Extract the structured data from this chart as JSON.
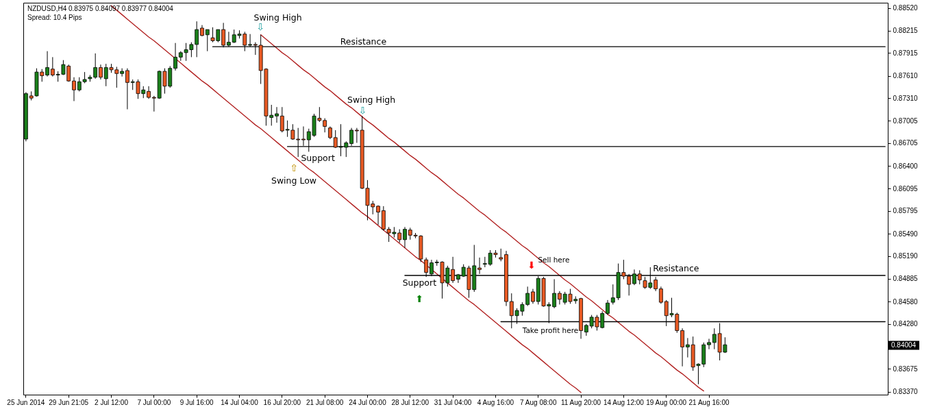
{
  "chart_data": {
    "type": "candlestick",
    "title": "NZDUSD,H4 0.83975 0.84097 0.83977 0.84004",
    "subtitle": "Spread: 10.4 Pips",
    "categories": [
      "25 Jun 2014",
      null,
      null,
      null,
      null,
      null,
      null,
      null,
      "29 Jun 21:05",
      null,
      null,
      null,
      null,
      null,
      null,
      null,
      "2 Jul 12:00",
      null,
      null,
      null,
      null,
      null,
      null,
      null,
      "7 Jul 00:00",
      null,
      null,
      null,
      null,
      null,
      null,
      null,
      "9 Jul 16:00",
      null,
      null,
      null,
      null,
      null,
      null,
      null,
      "14 Jul 04:00",
      null,
      null,
      null,
      null,
      null,
      null,
      null,
      "16 Jul 20:00",
      null,
      null,
      null,
      null,
      null,
      null,
      null,
      "21 Jul 08:00",
      null,
      null,
      null,
      null,
      null,
      null,
      null,
      "24 Jul 00:00",
      null,
      null,
      null,
      null,
      null,
      null,
      null,
      "28 Jul 12:00",
      null,
      null,
      null,
      null,
      null,
      null,
      null,
      "31 Jul 04:00",
      null,
      null,
      null,
      null,
      null,
      null,
      null,
      "4 Aug 16:00",
      null,
      null,
      null,
      null,
      null,
      null,
      null,
      "7 Aug 08:00",
      null,
      null,
      null,
      null,
      null,
      null,
      null,
      "11 Aug 20:00",
      null,
      null,
      null,
      null,
      null,
      null,
      null,
      "14 Aug 12:00",
      null,
      null,
      null,
      null,
      null,
      null,
      null,
      "19 Aug 00:00",
      null,
      null,
      null,
      null,
      null,
      null,
      null,
      "21 Aug 16:00",
      null,
      null,
      null,
      null,
      null,
      null,
      null,
      null,
      null,
      null,
      null,
      null,
      null,
      null,
      null,
      null,
      null,
      null,
      null,
      null,
      null,
      null,
      null,
      null,
      null,
      null,
      null,
      null,
      null,
      null,
      null,
      null,
      null
    ],
    "ohlc": [
      [
        0.8676,
        0.8739,
        0.8673,
        0.8737
      ],
      [
        0.8734,
        0.874,
        0.8728,
        0.8731
      ],
      [
        0.8734,
        0.8771,
        0.8733,
        0.8766
      ],
      [
        0.8766,
        0.877,
        0.8753,
        0.8761
      ],
      [
        0.8762,
        0.8794,
        0.876,
        0.8772
      ],
      [
        0.877,
        0.8786,
        0.876,
        0.8762
      ],
      [
        0.8762,
        0.8767,
        0.8753,
        0.8763
      ],
      [
        0.8763,
        0.8782,
        0.8762,
        0.8776
      ],
      [
        0.8774,
        0.8776,
        0.8753,
        0.8754
      ],
      [
        0.8754,
        0.8759,
        0.8727,
        0.8742
      ],
      [
        0.8742,
        0.8759,
        0.874,
        0.8753
      ],
      [
        0.8753,
        0.8766,
        0.8751,
        0.8756
      ],
      [
        0.8757,
        0.8762,
        0.8753,
        0.8759
      ],
      [
        0.8759,
        0.8791,
        0.8757,
        0.8772
      ],
      [
        0.8772,
        0.8776,
        0.8756,
        0.8759
      ],
      [
        0.8757,
        0.8777,
        0.8747,
        0.8772
      ],
      [
        0.8772,
        0.8777,
        0.8765,
        0.8769
      ],
      [
        0.8769,
        0.8773,
        0.8745,
        0.8764
      ],
      [
        0.8764,
        0.8771,
        0.876,
        0.8767
      ],
      [
        0.8768,
        0.8771,
        0.8716,
        0.8752
      ],
      [
        0.8752,
        0.8756,
        0.8742,
        0.8753
      ],
      [
        0.8753,
        0.8756,
        0.873,
        0.8737
      ],
      [
        0.8737,
        0.8747,
        0.8731,
        0.8742
      ],
      [
        0.874,
        0.8747,
        0.873,
        0.8732
      ],
      [
        0.8732,
        0.8734,
        0.8713,
        0.8731
      ],
      [
        0.8731,
        0.8768,
        0.873,
        0.8767
      ],
      [
        0.8767,
        0.8771,
        0.8737,
        0.8747
      ],
      [
        0.8747,
        0.8774,
        0.8745,
        0.8771
      ],
      [
        0.8771,
        0.8805,
        0.8768,
        0.8786
      ],
      [
        0.8786,
        0.8794,
        0.8781,
        0.8792
      ],
      [
        0.8792,
        0.8805,
        0.8781,
        0.8796
      ],
      [
        0.8796,
        0.8806,
        0.8786,
        0.8803
      ],
      [
        0.8803,
        0.8834,
        0.8786,
        0.8823
      ],
      [
        0.8825,
        0.8829,
        0.8814,
        0.8815
      ],
      [
        0.8816,
        0.8823,
        0.8794,
        0.8823
      ],
      [
        0.8812,
        0.8826,
        0.8806,
        0.8808
      ],
      [
        0.8808,
        0.8823,
        0.8806,
        0.8823
      ],
      [
        0.8823,
        0.8832,
        0.8799,
        0.8802
      ],
      [
        0.8802,
        0.882,
        0.88,
        0.8806
      ],
      [
        0.8806,
        0.8823,
        0.8805,
        0.8816
      ],
      [
        0.8815,
        0.8822,
        0.8811,
        0.8817
      ],
      [
        0.8817,
        0.882,
        0.8794,
        0.8802
      ],
      [
        0.8802,
        0.8817,
        0.88,
        0.8803
      ],
      [
        0.8803,
        0.8806,
        0.8789,
        0.8802
      ],
      [
        0.8802,
        0.8816,
        0.875,
        0.8768
      ],
      [
        0.877,
        0.8771,
        0.8694,
        0.8707
      ],
      [
        0.8705,
        0.8722,
        0.8694,
        0.8708
      ],
      [
        0.8707,
        0.8719,
        0.8698,
        0.871
      ],
      [
        0.8707,
        0.8719,
        0.8685,
        0.8687
      ],
      [
        0.8688,
        0.8701,
        0.8679,
        0.8689
      ],
      [
        0.8688,
        0.8696,
        0.8675,
        0.8676
      ],
      [
        0.8676,
        0.8691,
        0.8652,
        0.8675
      ],
      [
        0.8676,
        0.8693,
        0.8667,
        0.8675
      ],
      [
        0.8675,
        0.869,
        0.8659,
        0.8686
      ],
      [
        0.8681,
        0.871,
        0.8679,
        0.8707
      ],
      [
        0.8704,
        0.8719,
        0.8699,
        0.8701
      ],
      [
        0.8701,
        0.8704,
        0.8685,
        0.8693
      ],
      [
        0.8691,
        0.8693,
        0.8676,
        0.8678
      ],
      [
        0.8678,
        0.8688,
        0.8664,
        0.8665
      ],
      [
        0.8665,
        0.8696,
        0.8653,
        0.8666
      ],
      [
        0.8665,
        0.8673,
        0.8652,
        0.8671
      ],
      [
        0.867,
        0.8691,
        0.8667,
        0.8688
      ],
      [
        0.8688,
        0.8691,
        0.8671,
        0.8687
      ],
      [
        0.8688,
        0.8707,
        0.8609,
        0.861
      ],
      [
        0.861,
        0.8621,
        0.8567,
        0.8587
      ],
      [
        0.8589,
        0.8593,
        0.8575,
        0.8585
      ],
      [
        0.8586,
        0.8587,
        0.8561,
        0.8578
      ],
      [
        0.858,
        0.8586,
        0.8553,
        0.8555
      ],
      [
        0.8555,
        0.8558,
        0.8538,
        0.855
      ],
      [
        0.8549,
        0.8558,
        0.8544,
        0.8551
      ],
      [
        0.855,
        0.8555,
        0.8537,
        0.8541
      ],
      [
        0.8541,
        0.8558,
        0.853,
        0.8555
      ],
      [
        0.8554,
        0.8557,
        0.8541,
        0.8547
      ],
      [
        0.8547,
        0.855,
        0.8543,
        0.8546
      ],
      [
        0.8546,
        0.8547,
        0.8511,
        0.8515
      ],
      [
        0.8514,
        0.8517,
        0.8491,
        0.8497
      ],
      [
        0.8495,
        0.8514,
        0.8492,
        0.851
      ],
      [
        0.851,
        0.8514,
        0.8506,
        0.8511
      ],
      [
        0.8511,
        0.8512,
        0.8462,
        0.8483
      ],
      [
        0.8483,
        0.8506,
        0.8478,
        0.8503
      ],
      [
        0.8501,
        0.8518,
        0.8483,
        0.8486
      ],
      [
        0.8488,
        0.8495,
        0.8483,
        0.8494
      ],
      [
        0.8492,
        0.8508,
        0.8491,
        0.8504
      ],
      [
        0.8503,
        0.8506,
        0.8463,
        0.8474
      ],
      [
        0.8474,
        0.8534,
        0.8471,
        0.8506
      ],
      [
        0.8503,
        0.8517,
        0.8495,
        0.8501
      ],
      [
        0.8508,
        0.8518,
        0.8504,
        0.8509
      ],
      [
        0.8508,
        0.8527,
        0.8506,
        0.8523
      ],
      [
        0.8523,
        0.8527,
        0.8517,
        0.8521
      ],
      [
        0.8517,
        0.8529,
        0.8512,
        0.8515
      ],
      [
        0.8521,
        0.8526,
        0.8452,
        0.8458
      ],
      [
        0.8458,
        0.8469,
        0.8422,
        0.8439
      ],
      [
        0.8439,
        0.8449,
        0.8428,
        0.8446
      ],
      [
        0.8445,
        0.8457,
        0.8439,
        0.8454
      ],
      [
        0.8454,
        0.8478,
        0.8452,
        0.8469
      ],
      [
        0.8471,
        0.8475,
        0.8455,
        0.8458
      ],
      [
        0.8458,
        0.8492,
        0.8454,
        0.8489
      ],
      [
        0.8489,
        0.8491,
        0.8451,
        0.8452
      ],
      [
        0.8452,
        0.8457,
        0.8429,
        0.8454
      ],
      [
        0.8451,
        0.8488,
        0.8449,
        0.8469
      ],
      [
        0.8469,
        0.8472,
        0.8454,
        0.8461
      ],
      [
        0.8457,
        0.8471,
        0.8454,
        0.8468
      ],
      [
        0.8468,
        0.8475,
        0.8455,
        0.8458
      ],
      [
        0.8459,
        0.8465,
        0.8455,
        0.8461
      ],
      [
        0.8462,
        0.8463,
        0.8408,
        0.8419
      ],
      [
        0.8417,
        0.8428,
        0.8412,
        0.8426
      ],
      [
        0.8425,
        0.844,
        0.8422,
        0.8437
      ],
      [
        0.8437,
        0.844,
        0.8419,
        0.8424
      ],
      [
        0.8423,
        0.8445,
        0.8422,
        0.8442
      ],
      [
        0.8442,
        0.846,
        0.844,
        0.8456
      ],
      [
        0.8457,
        0.8481,
        0.8454,
        0.8463
      ],
      [
        0.8463,
        0.8509,
        0.846,
        0.8497
      ],
      [
        0.8497,
        0.8514,
        0.8488,
        0.8492
      ],
      [
        0.8492,
        0.8495,
        0.8466,
        0.8481
      ],
      [
        0.8482,
        0.8501,
        0.848,
        0.8495
      ],
      [
        0.8495,
        0.85,
        0.8481,
        0.8487
      ],
      [
        0.8486,
        0.8491,
        0.8475,
        0.8477
      ],
      [
        0.8477,
        0.8504,
        0.8475,
        0.8483
      ],
      [
        0.8487,
        0.8491,
        0.8472,
        0.8475
      ],
      [
        0.8475,
        0.8478,
        0.8455,
        0.8457
      ],
      [
        0.8458,
        0.846,
        0.8425,
        0.8439
      ],
      [
        0.844,
        0.8463,
        0.8437,
        0.8442
      ],
      [
        0.8441,
        0.8443,
        0.8416,
        0.8419
      ],
      [
        0.8419,
        0.8422,
        0.8371,
        0.8397
      ],
      [
        0.8397,
        0.8409,
        0.8383,
        0.84
      ],
      [
        0.84,
        0.8411,
        0.8365,
        0.837
      ],
      [
        0.8372,
        0.8375,
        0.8347,
        0.8374
      ],
      [
        0.8374,
        0.8403,
        0.837,
        0.84
      ],
      [
        0.84,
        0.8408,
        0.8394,
        0.8403
      ],
      [
        0.8403,
        0.8422,
        0.8394,
        0.8414
      ],
      [
        0.8415,
        0.8429,
        0.8379,
        0.839
      ],
      [
        0.839,
        0.841,
        0.8389,
        0.84
      ],
      null,
      null,
      null,
      null,
      null,
      null,
      null,
      null,
      null,
      null,
      null,
      null,
      null,
      null,
      null,
      null,
      null,
      null,
      null,
      null,
      null,
      null,
      null,
      null,
      null,
      null,
      null,
      null,
      null,
      null
    ],
    "colors": [
      "#1a7f1a",
      "#e85a24",
      "#1a7f1a",
      "#e85a24",
      "#1a7f1a",
      "#e85a24",
      "#1a7f1a",
      "#1a7f1a",
      "#e85a24",
      "#e85a24",
      "#1a7f1a",
      "#1a7f1a",
      "#1a7f1a",
      "#1a7f1a",
      "#e85a24",
      "#1a7f1a",
      "#e85a24",
      "#e85a24",
      "#1a7f1a",
      "#e85a24",
      "#1a7f1a",
      "#e85a24",
      "#1a7f1a",
      "#e85a24",
      "#e85a24",
      "#1a7f1a",
      "#e85a24",
      "#1a7f1a",
      "#1a7f1a",
      "#1a7f1a",
      "#1a7f1a",
      "#1a7f1a",
      "#1a7f1a",
      "#e85a24",
      "#1a7f1a",
      "#e85a24",
      "#1a7f1a",
      "#e85a24",
      "#1a7f1a",
      "#1a7f1a",
      "#1a7f1a",
      "#e85a24",
      "#1a7f1a",
      "#e85a24",
      "#e85a24",
      "#e85a24",
      "#1a7f1a",
      "#1a7f1a",
      "#e85a24",
      "#1a7f1a",
      "#e85a24",
      "#e85a24",
      "#e85a24",
      "#1a7f1a",
      "#1a7f1a",
      "#e85a24",
      "#e85a24",
      "#e85a24",
      "#e85a24",
      "#1a7f1a",
      "#1a7f1a",
      "#1a7f1a",
      "#e85a24",
      "#e85a24",
      "#e85a24",
      "#e85a24",
      "#e85a24",
      "#e85a24",
      "#e85a24",
      "#1a7f1a",
      "#e85a24",
      "#1a7f1a",
      "#e85a24",
      "#e85a24",
      "#e85a24",
      "#e85a24",
      "#1a7f1a",
      "#1a7f1a",
      "#e85a24",
      "#1a7f1a",
      "#e85a24",
      "#1a7f1a",
      "#1a7f1a",
      "#e85a24",
      "#1a7f1a",
      "#e85a24",
      "#1a7f1a",
      "#1a7f1a",
      "#e85a24",
      "#e85a24",
      "#e85a24",
      "#e85a24",
      "#1a7f1a",
      "#1a7f1a",
      "#1a7f1a",
      "#e85a24",
      "#1a7f1a",
      "#e85a24",
      "#1a7f1a",
      "#1a7f1a",
      "#e85a24",
      "#1a7f1a",
      "#e85a24",
      "#1a7f1a",
      "#e85a24",
      "#1a7f1a",
      "#1a7f1a",
      "#e85a24",
      "#1a7f1a",
      "#1a7f1a",
      "#1a7f1a",
      "#1a7f1a",
      "#e85a24",
      "#e85a24",
      "#1a7f1a",
      "#e85a24",
      "#e85a24",
      "#1a7f1a",
      "#e85a24",
      "#e85a24",
      "#e85a24",
      "#1a7f1a",
      "#e85a24",
      "#e85a24",
      "#1a7f1a",
      "#e85a24",
      "#1a7f1a",
      "#1a7f1a",
      "#1a7f1a",
      "#1a7f1a",
      "#e85a24",
      "#1a7f1a",
      null,
      null,
      null,
      null,
      null,
      null,
      null,
      null,
      null,
      null,
      null,
      null,
      null,
      null,
      null,
      null,
      null,
      null,
      null,
      null,
      null,
      null,
      null,
      null,
      null,
      null,
      null,
      null,
      null,
      null
    ],
    "series": [
      {
        "type": "line",
        "color": "#b22222",
        "values": [
          null,
          null,
          null,
          null,
          null,
          null,
          null,
          null,
          null,
          null,
          null,
          null,
          null,
          null,
          null,
          null,
          null,
          null,
          null,
          null,
          null,
          null,
          null,
          null,
          null,
          null,
          null,
          null,
          null,
          null,
          null,
          null,
          null,
          null,
          null,
          null,
          null,
          null,
          null,
          null,
          null,
          null,
          null,
          null,
          0.8816,
          0.881,
          0.8804,
          0.8798,
          0.8792,
          0.8787,
          0.8781,
          0.8775,
          0.8769,
          0.8764,
          0.8758,
          0.8752,
          0.8746,
          0.8741,
          0.8735,
          0.8729,
          0.8723,
          0.8718,
          0.8712,
          0.8706,
          0.87,
          0.8695,
          0.8689,
          0.8683,
          0.8677,
          0.8672,
          0.8666,
          0.866,
          0.8654,
          0.8649,
          0.8643,
          0.8637,
          0.8631,
          0.8626,
          0.862,
          0.8614,
          0.8608,
          0.8602,
          0.8597,
          0.8591,
          0.8585,
          0.8579,
          0.8574,
          0.8568,
          0.8562,
          0.8556,
          0.8551,
          0.8545,
          0.8539,
          0.8533,
          0.8528,
          0.8522,
          0.8516,
          0.851,
          0.8505,
          0.8499,
          0.8493,
          0.8487,
          0.8482,
          0.8476,
          0.847,
          0.8464,
          0.8459,
          0.8453,
          0.8447,
          0.8441,
          0.8436,
          0.843,
          0.8424,
          0.8418,
          0.8413,
          0.8407,
          0.8401,
          0.8395,
          0.8389,
          0.8384,
          0.8378,
          0.8372,
          0.8366,
          0.8361,
          0.8355,
          0.8349,
          0.8343,
          0.8338,
          null,
          null,
          null,
          null,
          null,
          null,
          null,
          null,
          null,
          null,
          null,
          null,
          null,
          null,
          null,
          null,
          null,
          null,
          null,
          null,
          null,
          null,
          null,
          null,
          null,
          null,
          null,
          null,
          null,
          null,
          null,
          null,
          null,
          null
        ]
      },
      {
        "type": "line",
        "color": "#b22222",
        "values": [
          null,
          null,
          null,
          null,
          null,
          null,
          null,
          null,
          null,
          null,
          null,
          null,
          null,
          null,
          null,
          null,
          0.8855,
          0.8849,
          0.8843,
          0.8837,
          0.8831,
          0.8825,
          0.8819,
          0.8813,
          0.8808,
          0.8802,
          0.8796,
          0.879,
          0.8784,
          0.8778,
          0.8772,
          0.8766,
          0.876,
          0.8754,
          0.8749,
          0.8743,
          0.8737,
          0.8731,
          0.8725,
          0.8719,
          0.8713,
          0.8707,
          0.8701,
          0.8695,
          0.869,
          0.8684,
          0.8678,
          0.8672,
          0.8666,
          0.866,
          0.8654,
          0.8648,
          0.8642,
          0.8636,
          0.8631,
          0.8625,
          0.8619,
          0.8613,
          0.8607,
          0.8601,
          0.8595,
          0.8589,
          0.8583,
          0.8577,
          0.8572,
          0.8566,
          0.856,
          0.8554,
          0.8548,
          0.8542,
          0.8536,
          0.853,
          0.8524,
          0.8518,
          0.8513,
          0.8507,
          0.8501,
          0.8495,
          0.8489,
          0.8483,
          0.8477,
          0.8471,
          0.8465,
          0.8459,
          0.8454,
          0.8448,
          0.8442,
          0.8436,
          0.843,
          0.8424,
          0.8418,
          0.8412,
          0.8406,
          0.84,
          0.8395,
          0.8389,
          0.8383,
          0.8377,
          0.8371,
          0.8365,
          0.8359,
          0.8353,
          0.8347,
          0.8342,
          0.8336,
          null,
          null,
          null,
          null,
          null,
          null,
          null,
          null,
          null,
          null,
          null,
          null,
          null,
          null,
          null,
          null,
          null,
          null,
          null,
          null,
          null,
          null,
          null,
          null,
          null,
          null,
          null,
          null,
          null,
          null,
          null,
          null,
          null,
          null,
          null,
          null,
          null,
          null,
          null,
          null,
          null,
          null,
          null,
          null,
          null,
          null,
          null,
          null,
          null,
          null,
          null,
          null,
          null,
          null,
          null,
          null,
          null
        ]
      },
      {
        "type": "line",
        "color": "#000000",
        "values": [
          null,
          null,
          null,
          null,
          null,
          null,
          null,
          null,
          null,
          null,
          null,
          null,
          null,
          null,
          null,
          null,
          null,
          null,
          null,
          null,
          null,
          null,
          null,
          null,
          null,
          null,
          null,
          null,
          null,
          null,
          null,
          null,
          null,
          null,
          null,
          0.88,
          0.88,
          0.88,
          0.88,
          0.88,
          0.88,
          0.88,
          0.88,
          0.88,
          0.88,
          0.88,
          0.88,
          0.88,
          0.88,
          0.88,
          0.88,
          0.88,
          0.88,
          0.88,
          0.88,
          0.88,
          0.88,
          0.88,
          0.88,
          0.88,
          0.88,
          0.88,
          0.88,
          0.88,
          0.88,
          0.88,
          0.88,
          0.88,
          0.88,
          0.88,
          0.88,
          0.88,
          0.88,
          0.88,
          0.88,
          0.88,
          0.88,
          0.88,
          0.88,
          0.88,
          0.88,
          0.88,
          0.88,
          0.88,
          0.88,
          0.88,
          0.88,
          0.88,
          0.88,
          0.88,
          0.88,
          0.88,
          0.88,
          0.88,
          0.88,
          0.88,
          0.88,
          0.88,
          0.88,
          0.88,
          0.88,
          0.88,
          0.88,
          0.88,
          0.88,
          0.88,
          0.88,
          0.88,
          0.88,
          0.88,
          0.88,
          0.88,
          0.88,
          0.88,
          0.88,
          0.88,
          0.88,
          0.88,
          0.88,
          0.88,
          0.88,
          0.88,
          0.88,
          0.88,
          0.88,
          0.88,
          0.88,
          0.88,
          0.88,
          0.88,
          0.88,
          0.88,
          0.88,
          0.88,
          0.88,
          0.88,
          0.88,
          0.88,
          0.88,
          0.88,
          0.88,
          0.88,
          0.88,
          0.88,
          0.88,
          0.88,
          0.88,
          0.88,
          0.88,
          0.88,
          0.88,
          0.88,
          0.88,
          0.88,
          0.88,
          0.88,
          0.88,
          0.88,
          0.88,
          0.88,
          0.88,
          0.88
        ]
      },
      {
        "type": "line",
        "color": "#000000",
        "values": [
          null,
          null,
          null,
          null,
          null,
          null,
          null,
          null,
          null,
          null,
          null,
          null,
          null,
          null,
          null,
          null,
          null,
          null,
          null,
          null,
          null,
          null,
          null,
          null,
          null,
          null,
          null,
          null,
          null,
          null,
          null,
          null,
          null,
          null,
          null,
          null,
          null,
          null,
          null,
          null,
          null,
          null,
          null,
          null,
          null,
          null,
          null,
          null,
          null,
          0.8666,
          0.8666,
          0.8666,
          0.8666,
          0.8666,
          0.8666,
          0.8666,
          0.8666,
          0.8666,
          0.8666,
          0.8666,
          0.8666,
          0.8666,
          0.8666,
          0.8666,
          0.8666,
          0.8666,
          0.8666,
          0.8666,
          0.8666,
          0.8666,
          0.8666,
          0.8666,
          0.8666,
          0.8666,
          0.8666,
          0.8666,
          0.8666,
          0.8666,
          0.8666,
          0.8666,
          0.8666,
          0.8666,
          0.8666,
          0.8666,
          0.8666,
          0.8666,
          0.8666,
          0.8666,
          0.8666,
          0.8666,
          0.8666,
          0.8666,
          0.8666,
          0.8666,
          0.8666,
          0.8666,
          0.8666,
          0.8666,
          0.8666,
          0.8666,
          0.8666,
          0.8666,
          0.8666,
          0.8666,
          0.8666,
          0.8666,
          0.8666,
          0.8666,
          0.8666,
          0.8666,
          0.8666,
          0.8666,
          0.8666,
          0.8666,
          0.8666,
          0.8666,
          0.8666,
          0.8666,
          0.8666,
          0.8666,
          0.8666,
          0.8666,
          0.8666,
          0.8666,
          0.8666,
          0.8666,
          0.8666,
          0.8666,
          0.8666,
          0.8666,
          0.8666,
          0.8666,
          0.8666,
          0.8666,
          0.8666,
          0.8666,
          0.8666,
          0.8666,
          0.8666,
          0.8666,
          0.8666,
          0.8666,
          0.8666,
          0.8666,
          0.8666,
          0.8666,
          0.8666,
          0.8666,
          0.8666,
          0.8666,
          0.8666,
          0.8666,
          0.8666,
          0.8666,
          0.8666,
          0.8666,
          0.8666,
          0.8666,
          0.8666,
          0.8666,
          0.8666,
          0.8666
        ]
      },
      {
        "type": "line",
        "color": "#000000",
        "values": [
          null,
          null,
          null,
          null,
          null,
          null,
          null,
          null,
          null,
          null,
          null,
          null,
          null,
          null,
          null,
          null,
          null,
          null,
          null,
          null,
          null,
          null,
          null,
          null,
          null,
          null,
          null,
          null,
          null,
          null,
          null,
          null,
          null,
          null,
          null,
          null,
          null,
          null,
          null,
          null,
          null,
          null,
          null,
          null,
          null,
          null,
          null,
          null,
          null,
          null,
          null,
          null,
          null,
          null,
          null,
          null,
          null,
          null,
          null,
          null,
          null,
          null,
          null,
          null,
          null,
          null,
          null,
          null,
          null,
          null,
          null,
          0.8493,
          0.8493,
          0.8493,
          0.8493,
          0.8493,
          0.8493,
          0.8493,
          0.8493,
          0.8493,
          0.8493,
          0.8493,
          0.8493,
          0.8493,
          0.8493,
          0.8493,
          0.8493,
          0.8493,
          0.8493,
          0.8493,
          0.8493,
          0.8493,
          0.8493,
          0.8493,
          0.8493,
          0.8493,
          0.8493,
          0.8493,
          0.8493,
          0.8493,
          0.8493,
          0.8493,
          0.8493,
          0.8493,
          0.8493,
          0.8493,
          0.8493,
          0.8493,
          0.8493,
          0.8493,
          0.8493,
          0.8493,
          0.8493,
          0.8493,
          0.8493,
          0.8493,
          0.8493,
          0.8493,
          0.8493,
          0.8493,
          0.8493,
          0.8493,
          0.8493,
          0.8493,
          0.8493,
          0.8493,
          0.8493,
          0.8493,
          0.8493,
          0.8493,
          0.8493,
          0.8493,
          0.8493,
          0.8493,
          0.8493,
          0.8493,
          0.8493,
          0.8493,
          0.8493,
          0.8493,
          0.8493,
          0.8493,
          0.8493,
          0.8493,
          0.8493,
          0.8493,
          0.8493,
          0.8493,
          0.8493,
          0.8493,
          0.8493,
          0.8493,
          0.8493,
          0.8493,
          0.8493,
          0.8493,
          0.8493,
          0.8493,
          0.8493,
          0.8493,
          0.8493,
          0.8493
        ]
      },
      {
        "type": "line",
        "color": "#000000",
        "values": [
          null,
          null,
          null,
          null,
          null,
          null,
          null,
          null,
          null,
          null,
          null,
          null,
          null,
          null,
          null,
          null,
          null,
          null,
          null,
          null,
          null,
          null,
          null,
          null,
          null,
          null,
          null,
          null,
          null,
          null,
          null,
          null,
          null,
          null,
          null,
          null,
          null,
          null,
          null,
          null,
          null,
          null,
          null,
          null,
          null,
          null,
          null,
          null,
          null,
          null,
          null,
          null,
          null,
          null,
          null,
          null,
          null,
          null,
          null,
          null,
          null,
          null,
          null,
          null,
          null,
          null,
          null,
          null,
          null,
          null,
          null,
          null,
          null,
          null,
          null,
          null,
          null,
          null,
          null,
          null,
          null,
          null,
          null,
          null,
          null,
          null,
          null,
          null,
          null,
          0.8431,
          0.8431,
          0.8431,
          0.8431,
          0.8431,
          0.8431,
          0.8431,
          0.8431,
          0.8431,
          0.8431,
          0.8431,
          0.8431,
          0.8431,
          0.8431,
          0.8431,
          0.8431,
          0.8431,
          0.8431,
          0.8431,
          0.8431,
          0.8431,
          0.8431,
          0.8431,
          0.8431,
          0.8431,
          0.8431,
          0.8431,
          0.8431,
          0.8431,
          0.8431,
          0.8431,
          0.8431,
          0.8431,
          0.8431,
          0.8431,
          0.8431,
          0.8431,
          0.8431,
          0.8431,
          0.8431,
          0.8431,
          0.8431,
          0.8431,
          0.8431,
          0.8431,
          0.8431,
          0.8431,
          0.8431,
          0.8431,
          0.8431,
          0.8431,
          0.8431,
          0.8431,
          0.8431,
          0.8431,
          0.8431,
          0.8431,
          0.8431,
          0.8431,
          0.8431,
          0.8431,
          0.8431,
          0.8431,
          0.8431,
          0.8431,
          0.8431,
          0.8431,
          0.8431,
          0.8431,
          0.8431,
          0.8431,
          0.8431,
          0.8431
        ]
      }
    ],
    "annotations": [
      "Swing High",
      "⇩",
      "Resistance",
      "Swing High",
      "⇩",
      "Support",
      "⇧",
      "Swing Low",
      "Support",
      "⬆",
      "⬇",
      "Sell here",
      "Resistance",
      "Take profit here",
      "0.84004"
    ],
    "ylim": [
      0.8333,
      0.8859
    ],
    "yticks": [
      {
        "value": 0.8852,
        "label": "0.88520"
      },
      {
        "value": 0.88215,
        "label": "0.88215"
      },
      {
        "value": 0.87915,
        "label": "0.87915"
      },
      {
        "value": 0.8761,
        "label": "0.87610"
      },
      {
        "value": 0.8731,
        "label": "0.87310"
      },
      {
        "value": 0.87005,
        "label": "0.87005"
      },
      {
        "value": 0.86705,
        "label": "0.86705"
      },
      {
        "value": 0.864,
        "label": "0.86400"
      },
      {
        "value": 0.86095,
        "label": "0.86095"
      },
      {
        "value": 0.85795,
        "label": "0.85795"
      },
      {
        "value": 0.8549,
        "label": "0.85490"
      },
      {
        "value": 0.8519,
        "label": "0.85190"
      },
      {
        "value": 0.84885,
        "label": "0.84885"
      },
      {
        "value": 0.8458,
        "label": "0.84580"
      },
      {
        "value": 0.8428,
        "label": "0.84280"
      },
      {
        "value": 0.83675,
        "label": "0.83675"
      },
      {
        "value": 0.8337,
        "label": "0.83370"
      }
    ]
  }
}
